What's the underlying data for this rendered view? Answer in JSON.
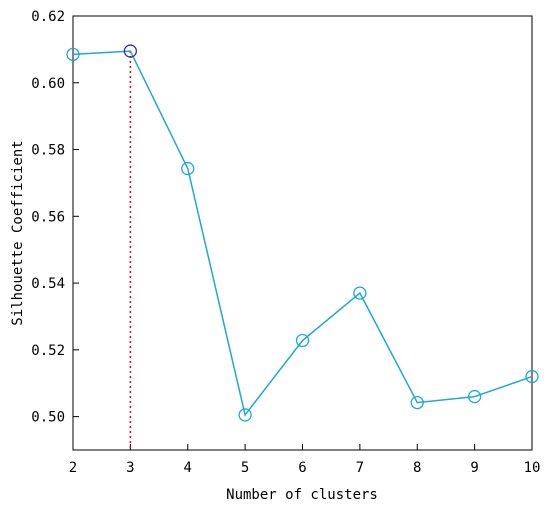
{
  "chart_data": {
    "type": "line",
    "title": "",
    "xlabel": "Number of clusters",
    "ylabel": "Silhouette Coefficient",
    "xlim": [
      2,
      10
    ],
    "ylim": [
      0.49,
      0.62
    ],
    "x_ticks": [
      "2",
      "3",
      "4",
      "5",
      "6",
      "7",
      "8",
      "9",
      "10"
    ],
    "y_ticks": [
      "0.50",
      "0.52",
      "0.54",
      "0.56",
      "0.58",
      "0.60",
      "0.62"
    ],
    "grid": false,
    "series": [
      {
        "color": "#1ea7dc",
        "marker": "circle-open",
        "x": [
          2,
          3,
          4,
          5,
          6,
          7,
          8,
          9,
          10
        ],
        "y": [
          0.6085,
          0.6095,
          0.5743,
          0.5005,
          0.5228,
          0.537,
          0.5042,
          0.506,
          0.512
        ]
      }
    ],
    "highlight": {
      "x": 3,
      "y": 0.6095,
      "line_color": "#ff0000",
      "line_style": "dotted",
      "marker_color": "#2a2ab8"
    }
  }
}
